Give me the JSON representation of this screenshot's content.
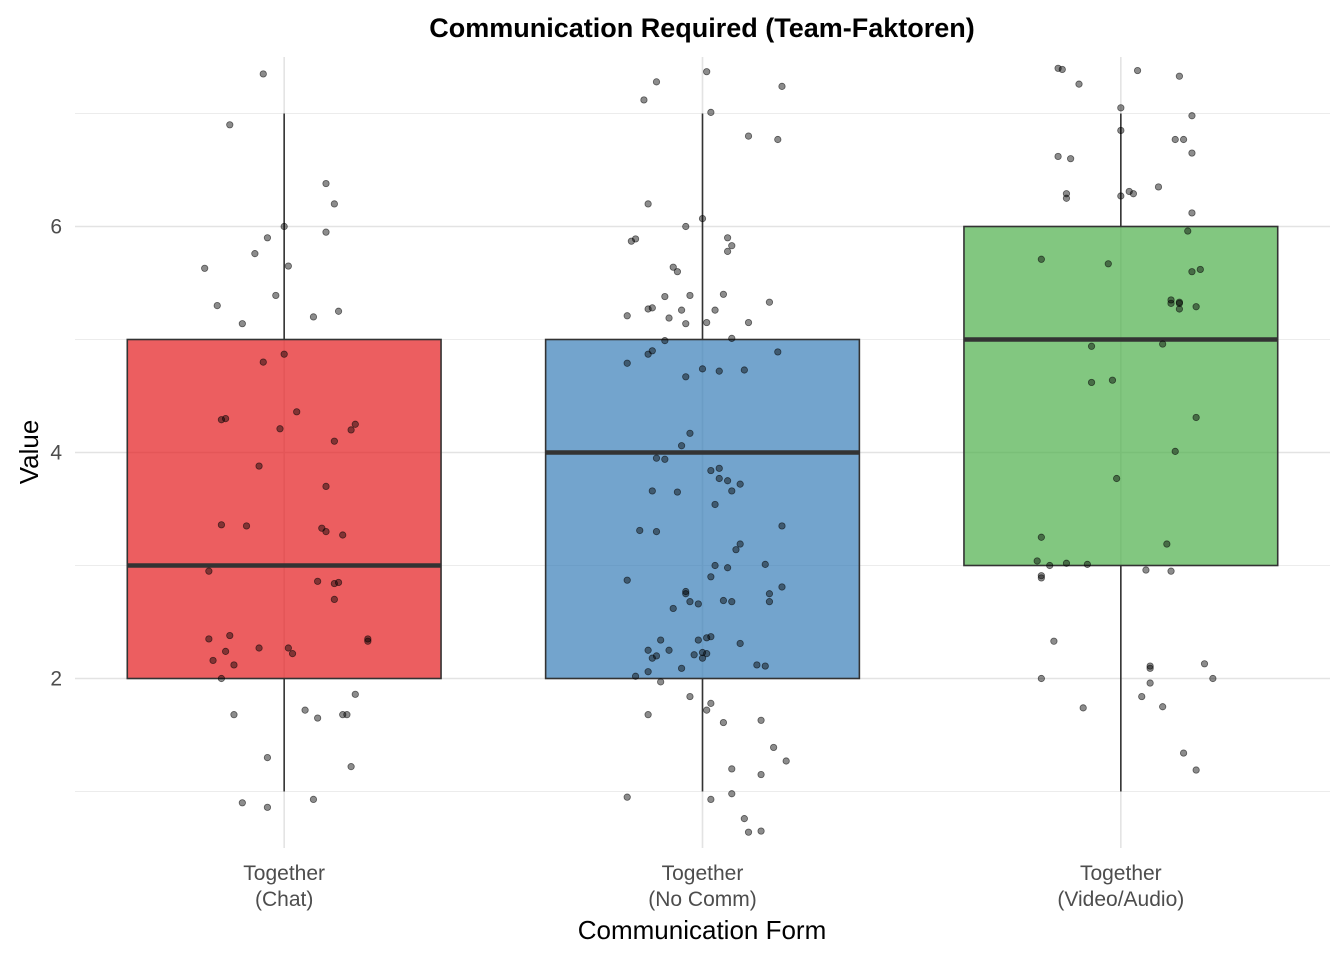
{
  "chart_data": {
    "type": "boxplot",
    "title": "Communication Required (Team-Faktoren)",
    "xlabel": "Communication Form",
    "ylabel": "Value",
    "ylim": [
      0.5,
      7.5
    ],
    "yticks": [
      2,
      4,
      6
    ],
    "grid": true,
    "legend": "none",
    "categories": [
      {
        "label_lines": [
          "Together",
          "(Chat)"
        ],
        "color": "#e41a1c",
        "box": {
          "min": 1,
          "q1": 2,
          "median": 3,
          "q3": 5,
          "max": 7
        },
        "points": [
          [
            -0.05,
            7.35
          ],
          [
            -0.13,
            6.9
          ],
          [
            0.1,
            6.38
          ],
          [
            0.12,
            6.2
          ],
          [
            -0.04,
            5.9
          ],
          [
            0,
            6.0
          ],
          [
            0.1,
            5.95
          ],
          [
            -0.07,
            5.76
          ],
          [
            0.01,
            5.65
          ],
          [
            -0.19,
            5.63
          ],
          [
            -0.02,
            5.39
          ],
          [
            -0.16,
            5.3
          ],
          [
            0.07,
            5.2
          ],
          [
            0.13,
            5.25
          ],
          [
            -0.1,
            5.14
          ],
          [
            0.0,
            4.87
          ],
          [
            -0.05,
            4.8
          ],
          [
            -0.14,
            4.3
          ],
          [
            -0.15,
            4.29
          ],
          [
            0.03,
            4.36
          ],
          [
            -0.01,
            4.21
          ],
          [
            0.17,
            4.25
          ],
          [
            0.16,
            4.2
          ],
          [
            0.12,
            4.1
          ],
          [
            -0.06,
            3.88
          ],
          [
            0.1,
            3.7
          ],
          [
            -0.15,
            3.36
          ],
          [
            -0.09,
            3.35
          ],
          [
            0.09,
            3.33
          ],
          [
            0.1,
            3.3
          ],
          [
            0.14,
            3.27
          ],
          [
            -0.18,
            2.95
          ],
          [
            0.08,
            2.86
          ],
          [
            0.13,
            2.85
          ],
          [
            0.12,
            2.84
          ],
          [
            0.12,
            2.7
          ],
          [
            -0.13,
            2.38
          ],
          [
            -0.18,
            2.35
          ],
          [
            0.2,
            2.33
          ],
          [
            0.2,
            2.35
          ],
          [
            -0.06,
            2.27
          ],
          [
            0.01,
            2.27
          ],
          [
            0.02,
            2.22
          ],
          [
            -0.14,
            2.24
          ],
          [
            -0.17,
            2.16
          ],
          [
            -0.12,
            2.12
          ],
          [
            -0.15,
            2.0
          ],
          [
            0.17,
            1.86
          ],
          [
            0.05,
            1.72
          ],
          [
            0.15,
            1.68
          ],
          [
            0.14,
            1.68
          ],
          [
            -0.12,
            1.68
          ],
          [
            0.08,
            1.65
          ],
          [
            -0.04,
            1.3
          ],
          [
            0.16,
            1.22
          ],
          [
            -0.1,
            0.9
          ],
          [
            -0.04,
            0.86
          ],
          [
            0.07,
            0.93
          ]
        ]
      },
      {
        "label_lines": [
          "Together",
          "(No Comm)"
        ],
        "color": "#377eb8",
        "box": {
          "min": 1,
          "q1": 2,
          "median": 4,
          "q3": 5,
          "max": 7
        },
        "points": [
          [
            0.01,
            7.37
          ],
          [
            -0.11,
            7.28
          ],
          [
            0.19,
            7.24
          ],
          [
            -0.14,
            7.12
          ],
          [
            0.02,
            7.01
          ],
          [
            0.11,
            6.8
          ],
          [
            0.18,
            6.77
          ],
          [
            -0.13,
            6.2
          ],
          [
            0.0,
            6.07
          ],
          [
            -0.04,
            6.0
          ],
          [
            -0.17,
            5.87
          ],
          [
            -0.16,
            5.89
          ],
          [
            0.06,
            5.9
          ],
          [
            0.07,
            5.83
          ],
          [
            0.06,
            5.78
          ],
          [
            -0.07,
            5.64
          ],
          [
            -0.06,
            5.6
          ],
          [
            -0.09,
            5.38
          ],
          [
            -0.03,
            5.39
          ],
          [
            0.05,
            5.4
          ],
          [
            -0.13,
            5.27
          ],
          [
            -0.18,
            5.21
          ],
          [
            -0.12,
            5.28
          ],
          [
            -0.05,
            5.26
          ],
          [
            0.03,
            5.26
          ],
          [
            0.16,
            5.33
          ],
          [
            -0.08,
            5.19
          ],
          [
            -0.04,
            5.14
          ],
          [
            0.01,
            5.15
          ],
          [
            0.11,
            5.15
          ],
          [
            -0.09,
            4.99
          ],
          [
            0.07,
            5.01
          ],
          [
            -0.13,
            4.87
          ],
          [
            -0.12,
            4.9
          ],
          [
            0.18,
            4.89
          ],
          [
            -0.18,
            4.79
          ],
          [
            0.0,
            4.74
          ],
          [
            0.04,
            4.72
          ],
          [
            0.1,
            4.73
          ],
          [
            -0.04,
            4.67
          ],
          [
            -0.03,
            4.17
          ],
          [
            -0.05,
            4.06
          ],
          [
            -0.11,
            3.95
          ],
          [
            -0.09,
            3.94
          ],
          [
            0.02,
            3.84
          ],
          [
            0.04,
            3.86
          ],
          [
            0.04,
            3.77
          ],
          [
            0.06,
            3.75
          ],
          [
            0.09,
            3.72
          ],
          [
            0.07,
            3.66
          ],
          [
            -0.12,
            3.66
          ],
          [
            -0.06,
            3.65
          ],
          [
            0.03,
            3.54
          ],
          [
            0.19,
            3.35
          ],
          [
            -0.15,
            3.31
          ],
          [
            -0.11,
            3.3
          ],
          [
            0.09,
            3.19
          ],
          [
            0.08,
            3.14
          ],
          [
            0.03,
            3.0
          ],
          [
            0.06,
            2.98
          ],
          [
            0.15,
            3.01
          ],
          [
            0.02,
            2.9
          ],
          [
            -0.18,
            2.87
          ],
          [
            0.19,
            2.81
          ],
          [
            0.16,
            2.75
          ],
          [
            -0.04,
            2.77
          ],
          [
            -0.04,
            2.75
          ],
          [
            0.16,
            2.68
          ],
          [
            0.05,
            2.69
          ],
          [
            0.07,
            2.68
          ],
          [
            -0.01,
            2.66
          ],
          [
            -0.03,
            2.68
          ],
          [
            -0.07,
            2.62
          ],
          [
            0.02,
            2.37
          ],
          [
            0.01,
            2.36
          ],
          [
            -0.01,
            2.34
          ],
          [
            -0.1,
            2.34
          ],
          [
            0.09,
            2.31
          ],
          [
            -0.13,
            2.25
          ],
          [
            -0.11,
            2.2
          ],
          [
            -0.08,
            2.25
          ],
          [
            0.0,
            2.23
          ],
          [
            0.01,
            2.22
          ],
          [
            0.0,
            2.18
          ],
          [
            -0.02,
            2.21
          ],
          [
            0.13,
            2.12
          ],
          [
            0.15,
            2.11
          ],
          [
            -0.12,
            2.18
          ],
          [
            -0.13,
            2.06
          ],
          [
            -0.05,
            2.09
          ],
          [
            -0.16,
            2.02
          ],
          [
            -0.1,
            1.97
          ],
          [
            -0.03,
            1.84
          ],
          [
            0.02,
            1.78
          ],
          [
            0.01,
            1.72
          ],
          [
            -0.13,
            1.68
          ],
          [
            0.05,
            1.61
          ],
          [
            0.14,
            1.63
          ],
          [
            0.17,
            1.39
          ],
          [
            0.2,
            1.27
          ],
          [
            0.07,
            1.2
          ],
          [
            0.14,
            1.15
          ],
          [
            -0.18,
            0.95
          ],
          [
            0.07,
            0.98
          ],
          [
            0.02,
            0.93
          ],
          [
            0.1,
            0.76
          ],
          [
            0.11,
            0.64
          ],
          [
            0.14,
            0.65
          ]
        ]
      },
      {
        "label_lines": [
          "Together",
          "(Video/Audio)"
        ],
        "color": "#4daf4a",
        "box": {
          "min": 1,
          "q1": 3,
          "median": 5,
          "q3": 6,
          "max": 7
        },
        "points": [
          [
            -0.15,
            7.4
          ],
          [
            -0.14,
            7.39
          ],
          [
            0.04,
            7.38
          ],
          [
            -0.1,
            7.26
          ],
          [
            0.14,
            7.33
          ],
          [
            0.0,
            7.05
          ],
          [
            0.17,
            6.98
          ],
          [
            0.0,
            6.85
          ],
          [
            0.15,
            6.77
          ],
          [
            0.13,
            6.77
          ],
          [
            0.17,
            6.65
          ],
          [
            -0.15,
            6.62
          ],
          [
            -0.12,
            6.6
          ],
          [
            -0.13,
            6.29
          ],
          [
            0.0,
            6.27
          ],
          [
            0.02,
            6.31
          ],
          [
            0.09,
            6.35
          ],
          [
            -0.13,
            6.25
          ],
          [
            0.03,
            6.29
          ],
          [
            0.17,
            6.12
          ],
          [
            0.16,
            5.96
          ],
          [
            -0.19,
            5.71
          ],
          [
            -0.03,
            5.67
          ],
          [
            0.19,
            5.62
          ],
          [
            0.17,
            5.6
          ],
          [
            0.12,
            5.35
          ],
          [
            0.14,
            5.33
          ],
          [
            0.14,
            5.27
          ],
          [
            0.18,
            5.29
          ],
          [
            0.12,
            5.32
          ],
          [
            0.14,
            5.32
          ],
          [
            -0.07,
            4.94
          ],
          [
            0.1,
            4.96
          ],
          [
            -0.07,
            4.62
          ],
          [
            -0.02,
            4.64
          ],
          [
            0.18,
            4.31
          ],
          [
            0.13,
            4.01
          ],
          [
            -0.01,
            3.77
          ],
          [
            0.11,
            3.19
          ],
          [
            -0.19,
            3.25
          ],
          [
            -0.2,
            3.04
          ],
          [
            -0.17,
            3.0
          ],
          [
            -0.19,
            2.91
          ],
          [
            -0.19,
            2.89
          ],
          [
            -0.13,
            3.02
          ],
          [
            -0.08,
            3.01
          ],
          [
            0.06,
            2.96
          ],
          [
            0.12,
            2.95
          ],
          [
            0.2,
            2.13
          ],
          [
            0.07,
            2.11
          ],
          [
            0.07,
            2.09
          ],
          [
            -0.19,
            2.0
          ],
          [
            0.22,
            2.0
          ],
          [
            0.07,
            1.96
          ],
          [
            0.05,
            1.84
          ],
          [
            -0.09,
            1.74
          ],
          [
            0.1,
            1.75
          ],
          [
            0.15,
            1.34
          ],
          [
            0.18,
            1.19
          ],
          [
            -0.16,
            2.33
          ]
        ]
      }
    ]
  }
}
